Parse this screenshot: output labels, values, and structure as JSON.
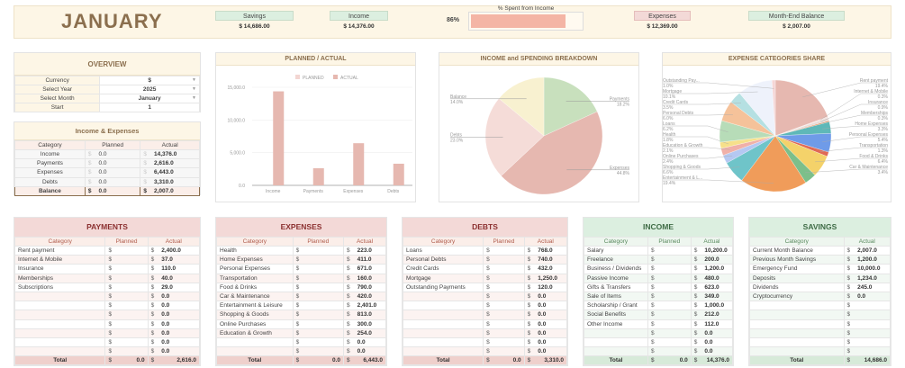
{
  "header": {
    "title": "JANUARY",
    "savings_label": "Savings",
    "savings_value": "$ 14,686.00",
    "income_label": "Income",
    "income_value": "$ 14,376.00",
    "spent_label": "% Spent from Income",
    "spent_pct_text": "86%",
    "spent_pct": 86,
    "expenses_label": "Expenses",
    "expenses_value": "$ 12,369.00",
    "balance_label": "Month-End Balance",
    "balance_value": "$ 2,007.00"
  },
  "overview": {
    "title": "OVERVIEW",
    "rows": [
      {
        "label": "Currency",
        "value": "$"
      },
      {
        "label": "Select Year",
        "value": "2025"
      },
      {
        "label": "Select Month",
        "value": "January"
      },
      {
        "label": "Start",
        "value": "1"
      }
    ]
  },
  "income_expenses": {
    "title": "Income & Expenses",
    "headers": [
      "Category",
      "Planned",
      "Actual"
    ],
    "currency": "$",
    "rows": [
      {
        "category": "Income",
        "planned": "0.0",
        "actual": "14,376.0"
      },
      {
        "category": "Payments",
        "planned": "0.0",
        "actual": "2,616.0"
      },
      {
        "category": "Expenses",
        "planned": "0.0",
        "actual": "6,443.0"
      },
      {
        "category": "Debts",
        "planned": "0.0",
        "actual": "3,310.0"
      }
    ],
    "balance": {
      "category": "Balance",
      "planned": "0.0",
      "actual": "2,007.0"
    }
  },
  "chart_data": [
    {
      "type": "bar",
      "title": "PLANNED / ACTUAL",
      "legend": [
        "PLANNED",
        "ACTUAL"
      ],
      "legend_position": "top",
      "categories": [
        "Income",
        "Payments",
        "Expenses",
        "Debts"
      ],
      "series": [
        {
          "name": "PLANNED",
          "values": [
            0,
            0,
            0,
            0
          ],
          "color": "#f3d6d2"
        },
        {
          "name": "ACTUAL",
          "values": [
            14376,
            2616,
            6443,
            3310
          ],
          "color": "#e6b8b0"
        }
      ],
      "ylim": [
        0,
        15000
      ],
      "yticks": [
        "0.0",
        "5,000.0",
        "10,000.0",
        "15,000.0"
      ],
      "ytick_values": [
        0,
        5000,
        10000,
        15000
      ],
      "grid": true
    },
    {
      "type": "pie",
      "title": "INCOME and SPENDING BREAKDOWN",
      "slices": [
        {
          "label": "Payments",
          "value": 2616,
          "pct": "18.2%",
          "color": "#c8e0bd"
        },
        {
          "label": "Expenses",
          "value": 6443,
          "pct": "44.8%",
          "color": "#e6b8b0"
        },
        {
          "label": "Debts",
          "value": 3310,
          "pct": "23.0%",
          "color": "#f5dcd8"
        },
        {
          "label": "Balance",
          "value": 2007,
          "pct": "14.0%",
          "color": "#f8f1d0"
        }
      ]
    },
    {
      "type": "pie",
      "title": "EXPENSE CATEGORIES SHARE",
      "slices": [
        {
          "label": "Rent payment",
          "value": 2400,
          "pct": "19.4%",
          "color": "#e6b8b0",
          "side": "r"
        },
        {
          "label": "Internet & Mobile",
          "value": 37,
          "pct": "0.3%",
          "color": "#f0d8d4",
          "side": "r"
        },
        {
          "label": "Insurance",
          "value": 110,
          "pct": "0.9%",
          "color": "#e9dcd8",
          "side": "r"
        },
        {
          "label": "Memberships",
          "value": 40,
          "pct": "0.3%",
          "color": "#e07a3a",
          "side": "r"
        },
        {
          "label": "Home Expenses",
          "value": 411,
          "pct": "3.3%",
          "color": "#5fb8b8",
          "side": "r"
        },
        {
          "label": "Personal Expenses",
          "value": 671,
          "pct": "5.4%",
          "color": "#6f9be8",
          "side": "r"
        },
        {
          "label": "Transportation",
          "value": 160,
          "pct": "1.3%",
          "color": "#e06a55",
          "side": "r"
        },
        {
          "label": "Food & Drinks",
          "value": 790,
          "pct": "6.4%",
          "color": "#f4d26a",
          "side": "r"
        },
        {
          "label": "Car & Maintenance",
          "value": 420,
          "pct": "3.4%",
          "color": "#7cbf8a",
          "side": "r"
        },
        {
          "label": "Entertainment & L...",
          "value": 2401,
          "pct": "19.4%",
          "color": "#f09c5a",
          "side": "l"
        },
        {
          "label": "Shopping & Goods",
          "value": 813,
          "pct": "6.6%",
          "color": "#6fc4c9",
          "side": "l"
        },
        {
          "label": "Online Purchases",
          "value": 300,
          "pct": "2.4%",
          "color": "#b5c8f2",
          "side": "l"
        },
        {
          "label": "Education & Growth",
          "value": 254,
          "pct": "2.1%",
          "color": "#f0b0a8",
          "side": "l"
        },
        {
          "label": "Health",
          "value": 223,
          "pct": "1.8%",
          "color": "#f6e08a",
          "side": "l"
        },
        {
          "label": "Loans",
          "value": 768,
          "pct": "6.2%",
          "color": "#b7dcb8",
          "side": "l"
        },
        {
          "label": "Personal Debts",
          "value": 740,
          "pct": "6.0%",
          "color": "#f5c29a",
          "side": "l"
        },
        {
          "label": "Credit Cards",
          "value": 432,
          "pct": "3.5%",
          "color": "#b5e0e2",
          "side": "l"
        },
        {
          "label": "Mortgage",
          "value": 1250,
          "pct": "10.1%",
          "color": "#eef2fb",
          "side": "l"
        },
        {
          "label": "Outstanding Pay...",
          "value": 120,
          "pct": "1.0%",
          "color": "#f5d6d6",
          "side": "l"
        }
      ]
    }
  ],
  "tables": {
    "payments": {
      "title": "PAYMENTS",
      "headers": [
        "Category",
        "Planned",
        "Actual"
      ],
      "rows": [
        [
          "Rent payment",
          "",
          "2,400.0"
        ],
        [
          "Internet & Mobile",
          "",
          "37.0"
        ],
        [
          "Insurance",
          "",
          "110.0"
        ],
        [
          "Memberships",
          "",
          "40.0"
        ],
        [
          "Subscriptions",
          "",
          "29.0"
        ],
        [
          "",
          "",
          "0.0"
        ],
        [
          "",
          "",
          "0.0"
        ],
        [
          "",
          "",
          "0.0"
        ],
        [
          "",
          "",
          "0.0"
        ],
        [
          "",
          "",
          "0.0"
        ],
        [
          "",
          "",
          "0.0"
        ],
        [
          "",
          "",
          "0.0"
        ]
      ],
      "total": [
        "Total",
        "0.0",
        "2,616.0"
      ]
    },
    "expenses": {
      "title": "EXPENSES",
      "headers": [
        "Category",
        "Planned",
        "Actual"
      ],
      "rows": [
        [
          "Health",
          "",
          "223.0"
        ],
        [
          "Home Expenses",
          "",
          "411.0"
        ],
        [
          "Personal Expenses",
          "",
          "671.0"
        ],
        [
          "Transportation",
          "",
          "160.0"
        ],
        [
          "Food & Drinks",
          "",
          "790.0"
        ],
        [
          "Car & Maintenance",
          "",
          "420.0"
        ],
        [
          "Entertainment & Leisure",
          "",
          "2,401.0"
        ],
        [
          "Shopping & Goods",
          "",
          "813.0"
        ],
        [
          "Online Purchases",
          "",
          "300.0"
        ],
        [
          "Education & Growth",
          "",
          "254.0"
        ],
        [
          "",
          "",
          "0.0"
        ],
        [
          "",
          "",
          "0.0"
        ]
      ],
      "total": [
        "Total",
        "0.0",
        "6,443.0"
      ]
    },
    "debts": {
      "title": "DEBTS",
      "headers": [
        "Category",
        "Planned",
        "Actual"
      ],
      "rows": [
        [
          "Loans",
          "",
          "768.0"
        ],
        [
          "Personal Debts",
          "",
          "740.0"
        ],
        [
          "Credit Cards",
          "",
          "432.0"
        ],
        [
          "Mortgage",
          "",
          "1,250.0"
        ],
        [
          "Outstanding Payments",
          "",
          "120.0"
        ],
        [
          "",
          "",
          "0.0"
        ],
        [
          "",
          "",
          "0.0"
        ],
        [
          "",
          "",
          "0.0"
        ],
        [
          "",
          "",
          "0.0"
        ],
        [
          "",
          "",
          "0.0"
        ],
        [
          "",
          "",
          "0.0"
        ],
        [
          "",
          "",
          "0.0"
        ]
      ],
      "total": [
        "Total",
        "0.0",
        "3,310.0"
      ]
    },
    "income": {
      "title": "INCOME",
      "headers": [
        "Category",
        "Planned",
        "Actual"
      ],
      "rows": [
        [
          "Salary",
          "",
          "10,200.0"
        ],
        [
          "Freelance",
          "",
          "200.0"
        ],
        [
          "Business / Dividends",
          "",
          "1,200.0"
        ],
        [
          "Passive Income",
          "",
          "480.0"
        ],
        [
          "Gifts & Transfers",
          "",
          "623.0"
        ],
        [
          "Sale of Items",
          "",
          "349.0"
        ],
        [
          "Scholarship / Grant",
          "",
          "1,000.0"
        ],
        [
          "Social Benefits",
          "",
          "212.0"
        ],
        [
          "Other Income",
          "",
          "112.0"
        ],
        [
          "",
          "",
          "0.0"
        ],
        [
          "",
          "",
          "0.0"
        ],
        [
          "",
          "",
          "0.0"
        ]
      ],
      "total": [
        "Total",
        "0.0",
        "14,376.0"
      ]
    },
    "savings": {
      "title": "SAVINGS",
      "headers": [
        "Category",
        "Actual"
      ],
      "rows": [
        [
          "Current Month Balance",
          "2,007.0"
        ],
        [
          "Previous Month Savings",
          "1,200.0"
        ],
        [
          "Emergency Fund",
          "10,000.0"
        ],
        [
          "Deposits",
          "1,234.0"
        ],
        [
          "Dividends",
          "245.0"
        ],
        [
          "Cryptocurrency",
          "0.0"
        ],
        [
          "",
          ""
        ],
        [
          "",
          ""
        ],
        [
          "",
          ""
        ],
        [
          "",
          ""
        ],
        [
          "",
          ""
        ],
        [
          "",
          ""
        ]
      ],
      "total": [
        "Total",
        "14,686.0"
      ]
    }
  },
  "currency_symbol": "$"
}
